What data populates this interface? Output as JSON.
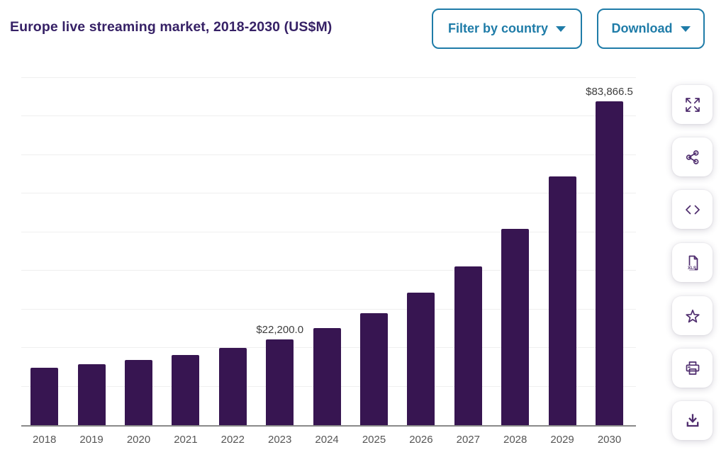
{
  "header": {
    "title": "Europe live streaming market, 2018-2030 (US$M)",
    "filter_button_label": "Filter by country",
    "download_button_label": "Download"
  },
  "toolbar": {
    "buttons": [
      {
        "name": "fullscreen",
        "icon": "expand-arrows-icon"
      },
      {
        "name": "share",
        "icon": "share-nodes-icon"
      },
      {
        "name": "embed-code",
        "icon": "code-icon"
      },
      {
        "name": "download-xls",
        "icon": "xls-file-icon"
      },
      {
        "name": "favorite",
        "icon": "star-icon"
      },
      {
        "name": "print",
        "icon": "printer-icon"
      },
      {
        "name": "download-image",
        "icon": "download-tray-icon"
      }
    ]
  },
  "chart_data": {
    "type": "bar",
    "title": "Europe live streaming market, 2018-2030 (US$M)",
    "unit": "US$M",
    "categories": [
      "2018",
      "2019",
      "2020",
      "2021",
      "2022",
      "2023",
      "2024",
      "2025",
      "2026",
      "2027",
      "2028",
      "2029",
      "2030"
    ],
    "values": [
      14800,
      15700,
      16800,
      18200,
      20050,
      22200,
      25100,
      29000,
      34250,
      41150,
      50750,
      64400,
      83866.5
    ],
    "data_labels": {
      "2023": "$22,200.0",
      "2030": "$83,866.5"
    },
    "ylim": [
      0,
      90000
    ],
    "gridline_interval": 10000,
    "grid": true,
    "y_axis_labels_visible": false,
    "legend": false,
    "bar_color": "#371551"
  },
  "colors": {
    "title": "#362166",
    "accent": "#1f7ca8",
    "icon": "#4f2d6e",
    "bar": "#371551",
    "grid_line": "#efefef",
    "axis_line": "#8a8a8a",
    "tick_label": "#565656",
    "data_label": "#3d3d3d",
    "background": "#ffffff"
  }
}
